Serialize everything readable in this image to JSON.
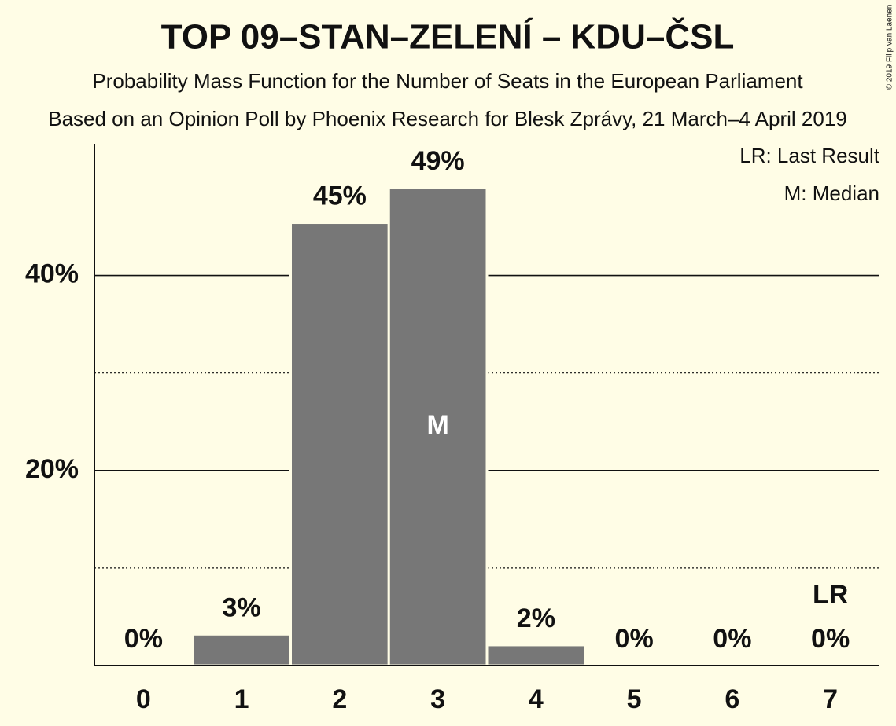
{
  "chart_data": {
    "type": "bar",
    "title": "TOP 09–STAN–ZELENÍ – KDU–ČSL",
    "subtitles": [
      "Probability Mass Function for the Number of Seats in the European Parliament",
      "Based on an Opinion Poll by Phoenix Research for Blesk Zprávy, 21 March–4 April 2019"
    ],
    "categories": [
      "0",
      "1",
      "2",
      "3",
      "4",
      "5",
      "6",
      "7"
    ],
    "values": [
      0,
      3.2,
      45.4,
      49,
      2.1,
      0,
      0,
      0
    ],
    "value_labels": [
      "0%",
      "3%",
      "45%",
      "49%",
      "2%",
      "0%",
      "0%",
      "0%"
    ],
    "color": "#777777",
    "ylim": [
      0,
      53.5
    ],
    "yticks": [
      {
        "value": 20,
        "label": "20%"
      },
      {
        "value": 40,
        "label": "40%"
      }
    ],
    "minor_gridlines": [
      10,
      30
    ],
    "grid": true,
    "median": {
      "index": 3,
      "label": "M"
    },
    "last_result": {
      "index": 7,
      "label": "LR"
    },
    "legend": [
      "LR: Last Result",
      "M: Median"
    ],
    "legend_position": "top-right",
    "credit": "© 2019 Filip van Laenen"
  }
}
